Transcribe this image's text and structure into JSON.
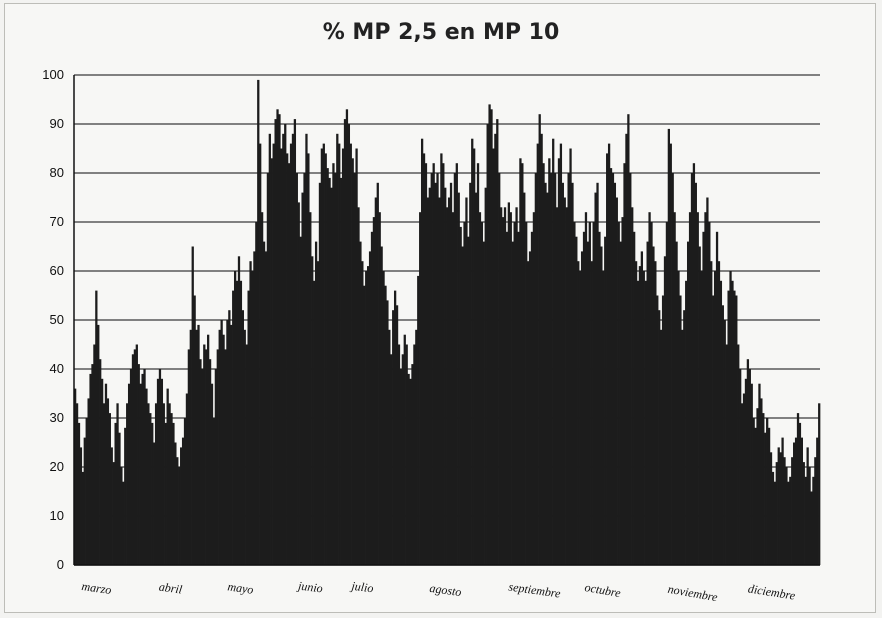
{
  "chart_data": {
    "type": "bar",
    "title": "% MP 2,5 en MP 10",
    "xlabel": "",
    "ylabel": "",
    "ylim": [
      0,
      100
    ],
    "yticks": [
      0,
      10,
      20,
      30,
      40,
      50,
      60,
      70,
      80,
      90,
      100
    ],
    "grid": true,
    "bar_color": "#1c1c1c",
    "month_labels": [
      "marzo",
      "abril",
      "mayo",
      "junio",
      "julio",
      "agosto",
      "septiembre",
      "octubre",
      "noviembre",
      "diciembre"
    ],
    "series": [
      {
        "values": [
          36,
          33,
          29,
          24,
          19,
          26,
          30,
          34,
          39,
          41,
          45,
          56,
          49,
          42,
          38,
          33,
          37,
          34,
          31,
          24,
          21,
          29,
          33,
          27,
          20,
          17,
          28,
          33,
          37,
          40,
          43,
          44,
          45,
          41,
          37,
          39,
          40,
          36,
          33,
          31,
          29,
          25,
          33,
          38,
          40,
          38,
          33,
          29,
          36,
          33,
          31,
          29,
          25,
          22,
          20,
          24,
          26,
          30,
          35,
          44,
          48,
          65,
          55,
          48,
          49,
          42,
          40,
          45,
          44,
          47,
          42,
          37,
          30,
          40,
          44,
          48,
          50,
          47,
          44,
          50,
          52,
          49,
          56,
          60,
          58,
          63,
          58,
          52,
          48,
          45,
          56,
          62,
          60,
          64,
          70,
          99,
          86,
          72,
          66,
          64,
          80,
          88,
          83,
          86,
          91,
          93,
          92,
          85,
          88,
          90,
          84,
          82,
          86,
          88,
          91,
          80,
          74,
          67,
          76,
          80,
          88,
          84,
          72,
          63,
          58,
          66,
          62,
          78,
          85,
          86,
          84,
          81,
          79,
          77,
          82,
          80,
          88,
          86,
          79,
          85,
          91,
          93,
          90,
          86,
          83,
          80,
          85,
          73,
          66,
          62,
          57,
          60,
          61,
          64,
          68,
          71,
          75,
          78,
          72,
          65,
          60,
          57,
          54,
          48,
          43,
          52,
          56,
          53,
          45,
          40,
          43,
          47,
          45,
          39,
          38,
          41,
          45,
          48,
          59,
          72,
          87,
          84,
          82,
          75,
          77,
          80,
          82,
          78,
          80,
          75,
          84,
          82,
          77,
          73,
          75,
          78,
          72,
          80,
          82,
          76,
          69,
          65,
          70,
          75,
          67,
          78,
          87,
          85,
          76,
          82,
          72,
          70,
          66,
          77,
          90,
          94,
          93,
          85,
          88,
          91,
          80,
          73,
          71,
          73,
          68,
          74,
          72,
          66,
          70,
          73,
          68,
          83,
          82,
          76,
          70,
          62,
          64,
          68,
          72,
          80,
          86,
          92,
          88,
          82,
          78,
          76,
          83,
          80,
          87,
          80,
          73,
          83,
          86,
          78,
          75,
          73,
          80,
          85,
          78,
          70,
          67,
          62,
          60,
          64,
          68,
          72,
          66,
          70,
          62,
          70,
          76,
          78,
          68,
          65,
          60,
          67,
          84,
          86,
          81,
          80,
          78,
          75,
          70,
          66,
          71,
          82,
          88,
          92,
          80,
          73,
          68,
          62,
          58,
          61,
          64,
          60,
          58,
          66,
          72,
          70,
          65,
          62,
          55,
          52,
          48,
          55,
          63,
          70,
          89,
          86,
          80,
          72,
          66,
          60,
          55,
          48,
          52,
          58,
          66,
          72,
          80,
          82,
          78,
          72,
          65,
          60,
          68,
          72,
          75,
          70,
          62,
          55,
          60,
          68,
          62,
          58,
          53,
          50,
          45,
          56,
          60,
          58,
          56,
          55,
          45,
          40,
          33,
          35,
          38,
          42,
          40,
          37,
          30,
          28,
          32,
          37,
          34,
          31,
          27,
          30,
          28,
          23,
          19,
          17,
          21,
          24,
          23,
          26,
          22,
          20,
          17,
          18,
          22,
          25,
          26,
          31,
          29,
          26,
          21,
          18,
          24,
          20,
          15,
          18,
          22,
          26,
          33
        ]
      }
    ]
  }
}
